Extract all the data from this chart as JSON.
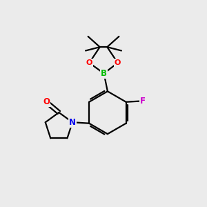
{
  "bg_color": "#ebebeb",
  "bond_color": "#000000",
  "atom_colors": {
    "B": "#00bb00",
    "O": "#ff0000",
    "N": "#0000ee",
    "F": "#cc00cc"
  }
}
